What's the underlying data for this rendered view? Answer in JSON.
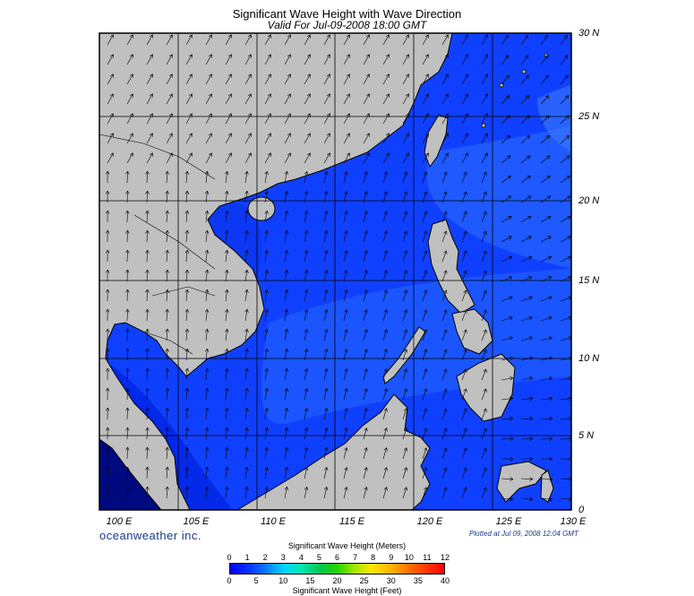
{
  "title": "Significant Wave Height with Wave Direction",
  "subtitle": "Valid For Jul-09-2008 18:00 GMT",
  "lat_labels": [
    "30 N",
    "25 N",
    "20 N",
    "15 N",
    "10 N",
    "5 N",
    "0"
  ],
  "lon_labels": [
    "100 E",
    "105 E",
    "110 E",
    "115 E",
    "120 E",
    "125 E",
    "130 E"
  ],
  "brand": "oceanweather inc.",
  "plotted": "Plotted at Jul 09, 2008 12:04 GMT",
  "legend": {
    "meters_title": "Significant Wave Height (Meters)",
    "meters_ticks": [
      "0",
      "1",
      "2",
      "3",
      "4",
      "5",
      "6",
      "7",
      "8",
      "9",
      "10",
      "11",
      "12"
    ],
    "feet_title": "Significant Wave Height (Feet)",
    "feet_ticks": [
      "0",
      "5",
      "10",
      "15",
      "20",
      "25",
      "30",
      "35",
      "40"
    ]
  },
  "colors": {
    "land": "#c0c0c0",
    "sea_low": "#0000ff",
    "sea_mid": "#0a2cff",
    "sea_high": "#1e5cff",
    "coast": "#000000"
  }
}
